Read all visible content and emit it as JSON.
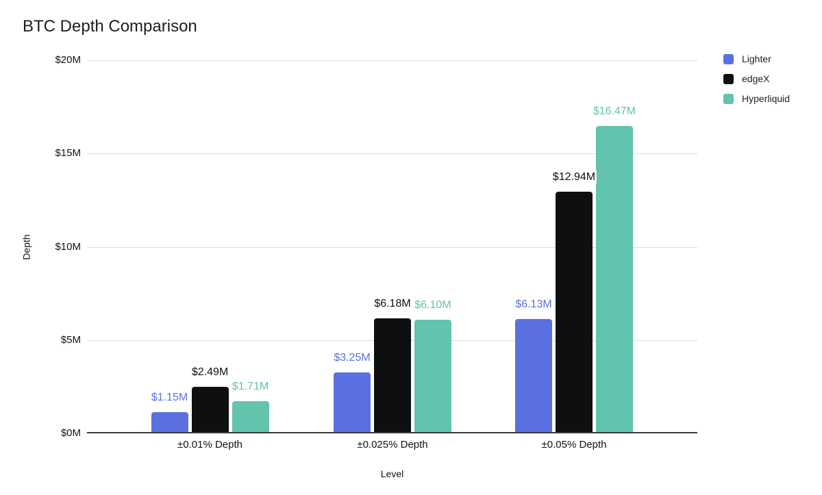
{
  "chart": {
    "title": "BTC Depth Comparison",
    "y_axis_title": "Depth",
    "x_axis_title": "Level"
  },
  "chart_data": {
    "type": "bar",
    "title": "BTC Depth Comparison",
    "xlabel": "Level",
    "ylabel": "Depth",
    "categories": [
      "±0.01% Depth",
      "±0.025% Depth",
      "±0.05% Depth"
    ],
    "series": [
      {
        "name": "Lighter",
        "color": "#5B70E0",
        "values": [
          1.15,
          3.25,
          6.13
        ],
        "value_labels": [
          "$1.15M",
          "$3.25M",
          "$6.13M"
        ]
      },
      {
        "name": "edgeX",
        "color": "#0E0F10",
        "values": [
          2.49,
          6.18,
          12.94
        ],
        "value_labels": [
          "$2.49M",
          "$6.18M",
          "$12.94M"
        ]
      },
      {
        "name": "Hyperliquid",
        "color": "#62C3AE",
        "values": [
          1.71,
          6.1,
          16.47
        ],
        "value_labels": [
          "$1.71M",
          "$6.10M",
          "$16.47M"
        ]
      }
    ],
    "ylim": [
      0,
      20
    ],
    "y_ticks": [
      {
        "value": 0,
        "label": "$0M"
      },
      {
        "value": 5,
        "label": "$5M"
      },
      {
        "value": 10,
        "label": "$10M"
      },
      {
        "value": 15,
        "label": "$15M"
      },
      {
        "value": 20,
        "label": "$20M"
      }
    ],
    "grid": true,
    "legend_position": "top-right"
  }
}
